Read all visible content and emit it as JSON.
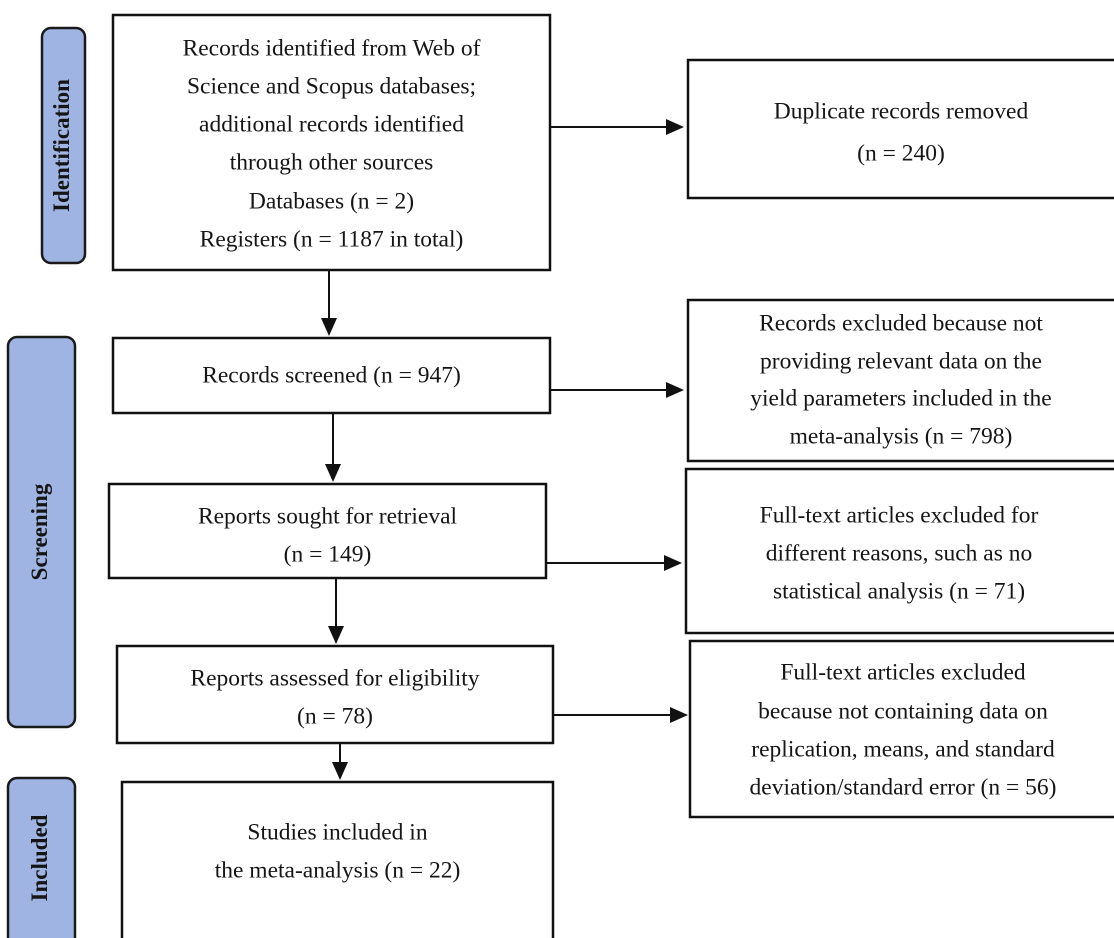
{
  "phases": [
    {
      "label": "Identification"
    },
    {
      "label": "Screening"
    },
    {
      "label": "Included"
    }
  ],
  "nodes": [
    {
      "lines": [
        "Records identified from Web of",
        "Science and Scopus databases;",
        "additional records identified",
        "through other sources",
        "Databases (n = 2)",
        "Registers (n = 1187 in total)"
      ]
    },
    {
      "lines": [
        "Duplicate records removed",
        "(n = 240)"
      ]
    },
    {
      "lines": [
        "Records screened (n = 947)"
      ]
    },
    {
      "lines": [
        "Records excluded because not",
        "providing relevant data on the",
        "yield parameters included in the",
        "meta-analysis (n = 798)"
      ]
    },
    {
      "lines": [
        "Reports sought for retrieval",
        "(n = 149)"
      ]
    },
    {
      "lines": [
        "Full-text articles excluded for",
        "different reasons, such as no",
        "statistical analysis (n = 71)"
      ]
    },
    {
      "lines": [
        "Reports assessed for eligibility",
        "(n = 78)"
      ]
    },
    {
      "lines": [
        "Full-text articles excluded",
        "because not containing data on",
        "replication, means, and standard",
        "deviation/standard error (n = 56)"
      ]
    },
    {
      "lines": [
        "Studies included in",
        "the meta-analysis (n = 22)"
      ]
    }
  ]
}
